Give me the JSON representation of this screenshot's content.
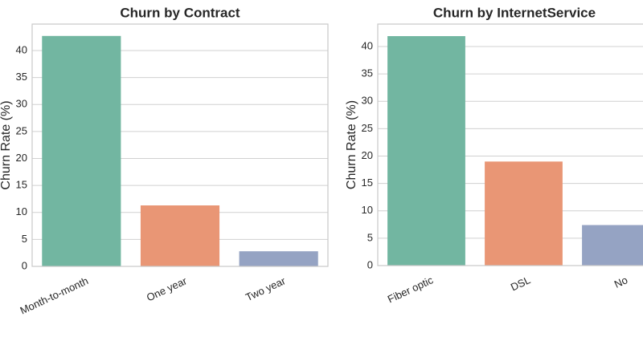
{
  "chart_data": [
    {
      "type": "bar",
      "title": "Churn by Contract",
      "y_label": "Churn Rate (%)",
      "categories": [
        "Month-to-month",
        "One year",
        "Two year"
      ],
      "values": [
        42.7,
        11.3,
        2.8
      ],
      "colors": [
        "#72b6a1",
        "#e99675",
        "#95a3c3"
      ],
      "ylim": [
        0,
        44.9
      ],
      "yticks": [
        0,
        5,
        10,
        15,
        20,
        25,
        30,
        35,
        40
      ],
      "grid": true
    },
    {
      "type": "bar",
      "title": "Churn by InternetService",
      "y_label": "Churn Rate (%)",
      "categories": [
        "Fiber optic",
        "DSL",
        "No"
      ],
      "values": [
        41.9,
        19.0,
        7.4
      ],
      "colors": [
        "#72b6a1",
        "#e99675",
        "#95a3c3"
      ],
      "ylim": [
        0,
        44.1
      ],
      "yticks": [
        0,
        5,
        10,
        15,
        20,
        25,
        30,
        35,
        40
      ],
      "grid": true
    }
  ]
}
